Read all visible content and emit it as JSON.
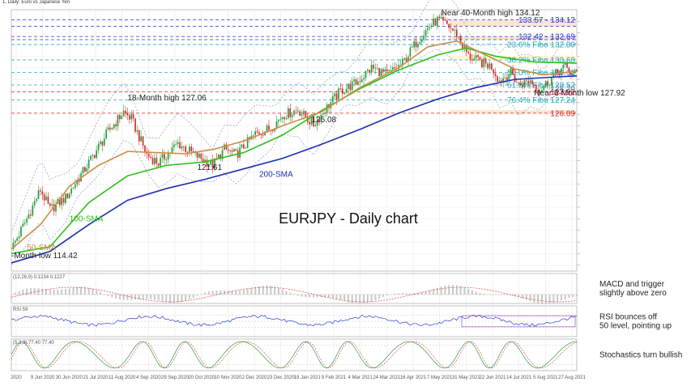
{
  "header": "1, Daily: Euro vs Japanese Yen",
  "chart_data": {
    "type": "line",
    "title": "EURJPY - Daily chart",
    "xlabel": "",
    "ylabel": "",
    "ylim": [
      112.5,
      135.0
    ],
    "grid": true,
    "x_ticks": [
      "2020",
      "9 Jun 2020",
      "30 Jun 2020",
      "21 Jul 2020",
      "11 Aug 2020",
      "4 Sep 2020",
      "29 Sep 2020",
      "20 Oct 2020",
      "10 Nov 2020",
      "2 Dec 2020",
      "23 Dec 2020",
      "19 Jan 2021",
      "9 Feb 2021",
      "4 Mar 2021",
      "24 Mar 2021",
      "16 Apr 2021",
      "7 May 2021",
      "31 May 2021",
      "22 Jun 2021",
      "14 Jul 2021",
      "5 Aug 2021",
      "27 Aug 2021"
    ],
    "price_path": [
      [
        0,
        114.4
      ],
      [
        8,
        117.0
      ],
      [
        15,
        119.5
      ],
      [
        20,
        117.8
      ],
      [
        28,
        118.8
      ],
      [
        38,
        121.3
      ],
      [
        50,
        124.5
      ],
      [
        58,
        126.2
      ],
      [
        62,
        125.6
      ],
      [
        70,
        122.5
      ],
      [
        76,
        121.8
      ],
      [
        86,
        123.5
      ],
      [
        94,
        122.6
      ],
      [
        104,
        121.6
      ],
      [
        110,
        123.0
      ],
      [
        116,
        122.5
      ],
      [
        126,
        124.3
      ],
      [
        134,
        124.8
      ],
      [
        140,
        125.9
      ],
      [
        148,
        126.4
      ],
      [
        156,
        125.1
      ],
      [
        162,
        126.4
      ],
      [
        170,
        128.0
      ],
      [
        178,
        128.7
      ],
      [
        186,
        130.0
      ],
      [
        194,
        129.4
      ],
      [
        202,
        130.4
      ],
      [
        210,
        132.4
      ],
      [
        216,
        133.6
      ],
      [
        220,
        134.1
      ],
      [
        225,
        133.7
      ],
      [
        230,
        132.9
      ],
      [
        236,
        131.0
      ],
      [
        242,
        130.5
      ],
      [
        248,
        130.1
      ],
      [
        252,
        128.9
      ],
      [
        258,
        129.6
      ],
      [
        262,
        128.5
      ],
      [
        268,
        128.9
      ],
      [
        273,
        128.1
      ],
      [
        276,
        128.6
      ],
      [
        282,
        129.6
      ],
      [
        286,
        130.1
      ],
      [
        290,
        129.4
      ],
      [
        292,
        129.6
      ]
    ],
    "series": [
      {
        "values": [
          [
            0,
            113.2
          ],
          [
            20,
            114.2
          ],
          [
            40,
            116.5
          ],
          [
            60,
            118.6
          ],
          [
            80,
            119.6
          ],
          [
            100,
            120.4
          ],
          [
            120,
            121.3
          ],
          [
            140,
            122.2
          ],
          [
            160,
            123.4
          ],
          [
            180,
            124.7
          ],
          [
            200,
            126.1
          ],
          [
            220,
            127.3
          ],
          [
            240,
            128.3
          ],
          [
            260,
            129.0
          ],
          [
            280,
            129.2
          ],
          [
            292,
            129.3
          ]
        ],
        "color": "#1c2fb0",
        "label": "200-SMA"
      },
      {
        "values": [
          [
            0,
            114.0
          ],
          [
            20,
            114.6
          ],
          [
            40,
            118.4
          ],
          [
            60,
            120.7
          ],
          [
            80,
            121.6
          ],
          [
            100,
            121.9
          ],
          [
            120,
            122.7
          ],
          [
            140,
            124.2
          ],
          [
            160,
            126.3
          ],
          [
            180,
            128.2
          ],
          [
            200,
            129.8
          ],
          [
            220,
            131.1
          ],
          [
            235,
            131.7
          ],
          [
            250,
            131.0
          ],
          [
            270,
            130.5
          ],
          [
            292,
            130.4
          ]
        ],
        "color": "#2fc01a",
        "label": "100-SMA"
      },
      {
        "values": [
          [
            0,
            114.4
          ],
          [
            15,
            116.5
          ],
          [
            30,
            119.8
          ],
          [
            45,
            121.6
          ],
          [
            60,
            122.8
          ],
          [
            75,
            122.7
          ],
          [
            90,
            122.6
          ],
          [
            105,
            123.0
          ],
          [
            120,
            123.7
          ],
          [
            140,
            125.0
          ],
          [
            160,
            126.2
          ],
          [
            180,
            128.3
          ],
          [
            200,
            130.0
          ],
          [
            215,
            131.8
          ],
          [
            230,
            132.3
          ],
          [
            245,
            131.1
          ],
          [
            260,
            129.9
          ],
          [
            275,
            129.4
          ],
          [
            292,
            129.7
          ]
        ],
        "color": "#d08a46",
        "label": "50-SMA"
      }
    ],
    "levels": [
      {
        "value": 134.12,
        "label": "133.57 - 134.12",
        "color": "#2236d6",
        "style": "dash"
      },
      {
        "value": 133.57,
        "label": "",
        "color": "#2236d6",
        "style": "dash"
      },
      {
        "value": 132.69,
        "label": "132.42 - 132.69",
        "color": "#2236d6",
        "style": "dash"
      },
      {
        "value": 132.42,
        "label": "",
        "color": "#2236d6",
        "style": "dash"
      },
      {
        "value": 132.0,
        "label": "23.6% Fibo 132.00",
        "color": "#23a8b6",
        "style": "dash"
      },
      {
        "value": 130.68,
        "label": "38.2% Fibo 130.68",
        "color": "#23a8b6",
        "style": "dash"
      },
      {
        "value": 129.61,
        "label": "50.0% Fibo 129.61",
        "color": "#23a8b6",
        "style": "dash"
      },
      {
        "value": 128.52,
        "label": "61.8% Fibo 128.52",
        "color": "#23a8b6",
        "style": "dash"
      },
      {
        "value": 128.2,
        "label": "128.20",
        "color": "#6f78c8",
        "style": "none"
      },
      {
        "value": 127.92,
        "label": "127.92",
        "color": "#e02020",
        "style": "dash"
      },
      {
        "value": 127.24,
        "label": "76.4% Fibo 127.24",
        "color": "#23a8b6",
        "style": "dash"
      },
      {
        "value": 126.09,
        "label": "126.09",
        "color": "#e02020",
        "style": "dash"
      }
    ],
    "annotations": [
      {
        "x": 222,
        "y": 134.5,
        "text": "Near 40-Month high 134.12"
      },
      {
        "x": 60,
        "y": 127.2,
        "text": "18-Month high 127.06"
      },
      {
        "x": 155,
        "y": 125.3,
        "text": "125.08"
      },
      {
        "x": 96,
        "y": 121.2,
        "text": "121.61"
      },
      {
        "x": 270,
        "y": 127.6,
        "text": "Near 6-Month low 127.92"
      },
      {
        "x": 0,
        "y": 113.6,
        "text": "-Month low 114.42"
      },
      {
        "x": 128,
        "y": 120.6,
        "text": "200-SMA"
      },
      {
        "x": 30,
        "y": 116.8,
        "text": "100-SMA"
      },
      {
        "x": 8,
        "y": 114.3,
        "text": "50-SMA"
      }
    ]
  },
  "indicators": [
    {
      "header": "(12,26,9) 0.1234 0.1227",
      "label_lines": [
        "MACD and trigger",
        "slightly above zero"
      ]
    },
    {
      "header": "RSI 59",
      "label_lines": [
        "RSI bounces off",
        "50 level, pointing up"
      ]
    },
    {
      "header": "(5,3,3) 77.40 77.40",
      "label_lines": [
        "Stochastics turn bullish"
      ]
    }
  ]
}
